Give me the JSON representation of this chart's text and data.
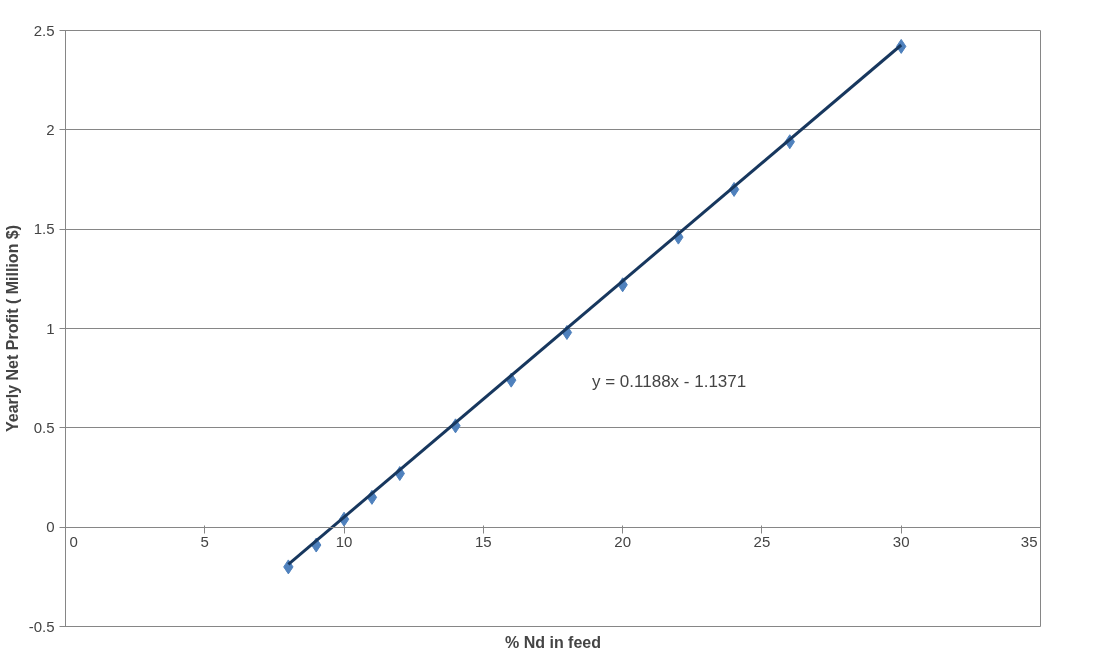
{
  "chart_data": {
    "type": "scatter",
    "xlabel": "% Nd in feed",
    "ylabel": "Yearly Net Profit ( Million $)",
    "xlim": [
      0,
      35
    ],
    "xticks": [
      0,
      5,
      10,
      15,
      20,
      25,
      30,
      35
    ],
    "ylim": [
      -0.5,
      2.5
    ],
    "yticks": [
      -0.5,
      0,
      0.5,
      1,
      1.5,
      2,
      2.5
    ],
    "grid": "y",
    "marker": "diamond",
    "series": [
      {
        "type": "scatter",
        "color": "#4f81bd",
        "x": [
          8,
          9,
          10,
          11,
          12,
          14,
          16,
          18,
          20,
          22,
          24,
          26,
          30
        ],
        "values": [
          -0.2,
          -0.09,
          0.04,
          0.15,
          0.27,
          0.51,
          0.74,
          0.98,
          1.22,
          1.46,
          1.7,
          1.94,
          2.42
        ]
      },
      {
        "type": "line",
        "color": "#17375e",
        "x": [
          8,
          30
        ],
        "values": [
          -0.187,
          2.427
        ],
        "marker": "none",
        "line_style": "solid"
      }
    ],
    "annotations": [
      "y = 0.1188x - 1.1371"
    ]
  }
}
